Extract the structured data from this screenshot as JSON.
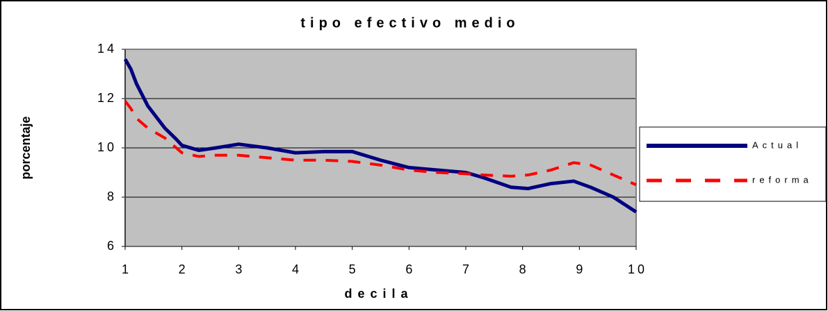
{
  "chart_data": {
    "type": "line",
    "title": "tipo efectivo medio",
    "xlabel": "decila",
    "ylabel": "porcentaje",
    "x": [
      1,
      1.1,
      1.2,
      1.4,
      1.7,
      1.9,
      2,
      2.3,
      2.6,
      3,
      3.5,
      4,
      4.5,
      5,
      5.5,
      6,
      6.5,
      7,
      7.3,
      7.8,
      8.1,
      8.5,
      8.9,
      9.2,
      9.6,
      10
    ],
    "series": [
      {
        "name": "Actual",
        "color": "#000080",
        "dash": "solid",
        "values": [
          13.6,
          13.2,
          12.6,
          11.7,
          10.8,
          10.35,
          10.1,
          9.9,
          10.0,
          10.15,
          10.0,
          9.8,
          9.85,
          9.85,
          9.5,
          9.2,
          9.1,
          9.0,
          8.8,
          8.4,
          8.35,
          8.55,
          8.65,
          8.4,
          8.0,
          7.4
        ]
      },
      {
        "name": "reforma",
        "color": "#ff0000",
        "dash": "dashed",
        "values": [
          11.9,
          11.6,
          11.2,
          10.8,
          10.4,
          10.0,
          9.8,
          9.65,
          9.7,
          9.7,
          9.6,
          9.5,
          9.5,
          9.45,
          9.3,
          9.1,
          9.0,
          8.95,
          8.9,
          8.85,
          8.9,
          9.1,
          9.4,
          9.3,
          8.9,
          8.5
        ]
      }
    ],
    "xlim": [
      1,
      10
    ],
    "xticks": [
      1,
      2,
      3,
      4,
      5,
      6,
      7,
      8,
      9,
      10
    ],
    "ylim": [
      6,
      14
    ],
    "yticks": [
      6,
      8,
      10,
      12,
      14
    ],
    "grid": true,
    "legend": "right"
  }
}
